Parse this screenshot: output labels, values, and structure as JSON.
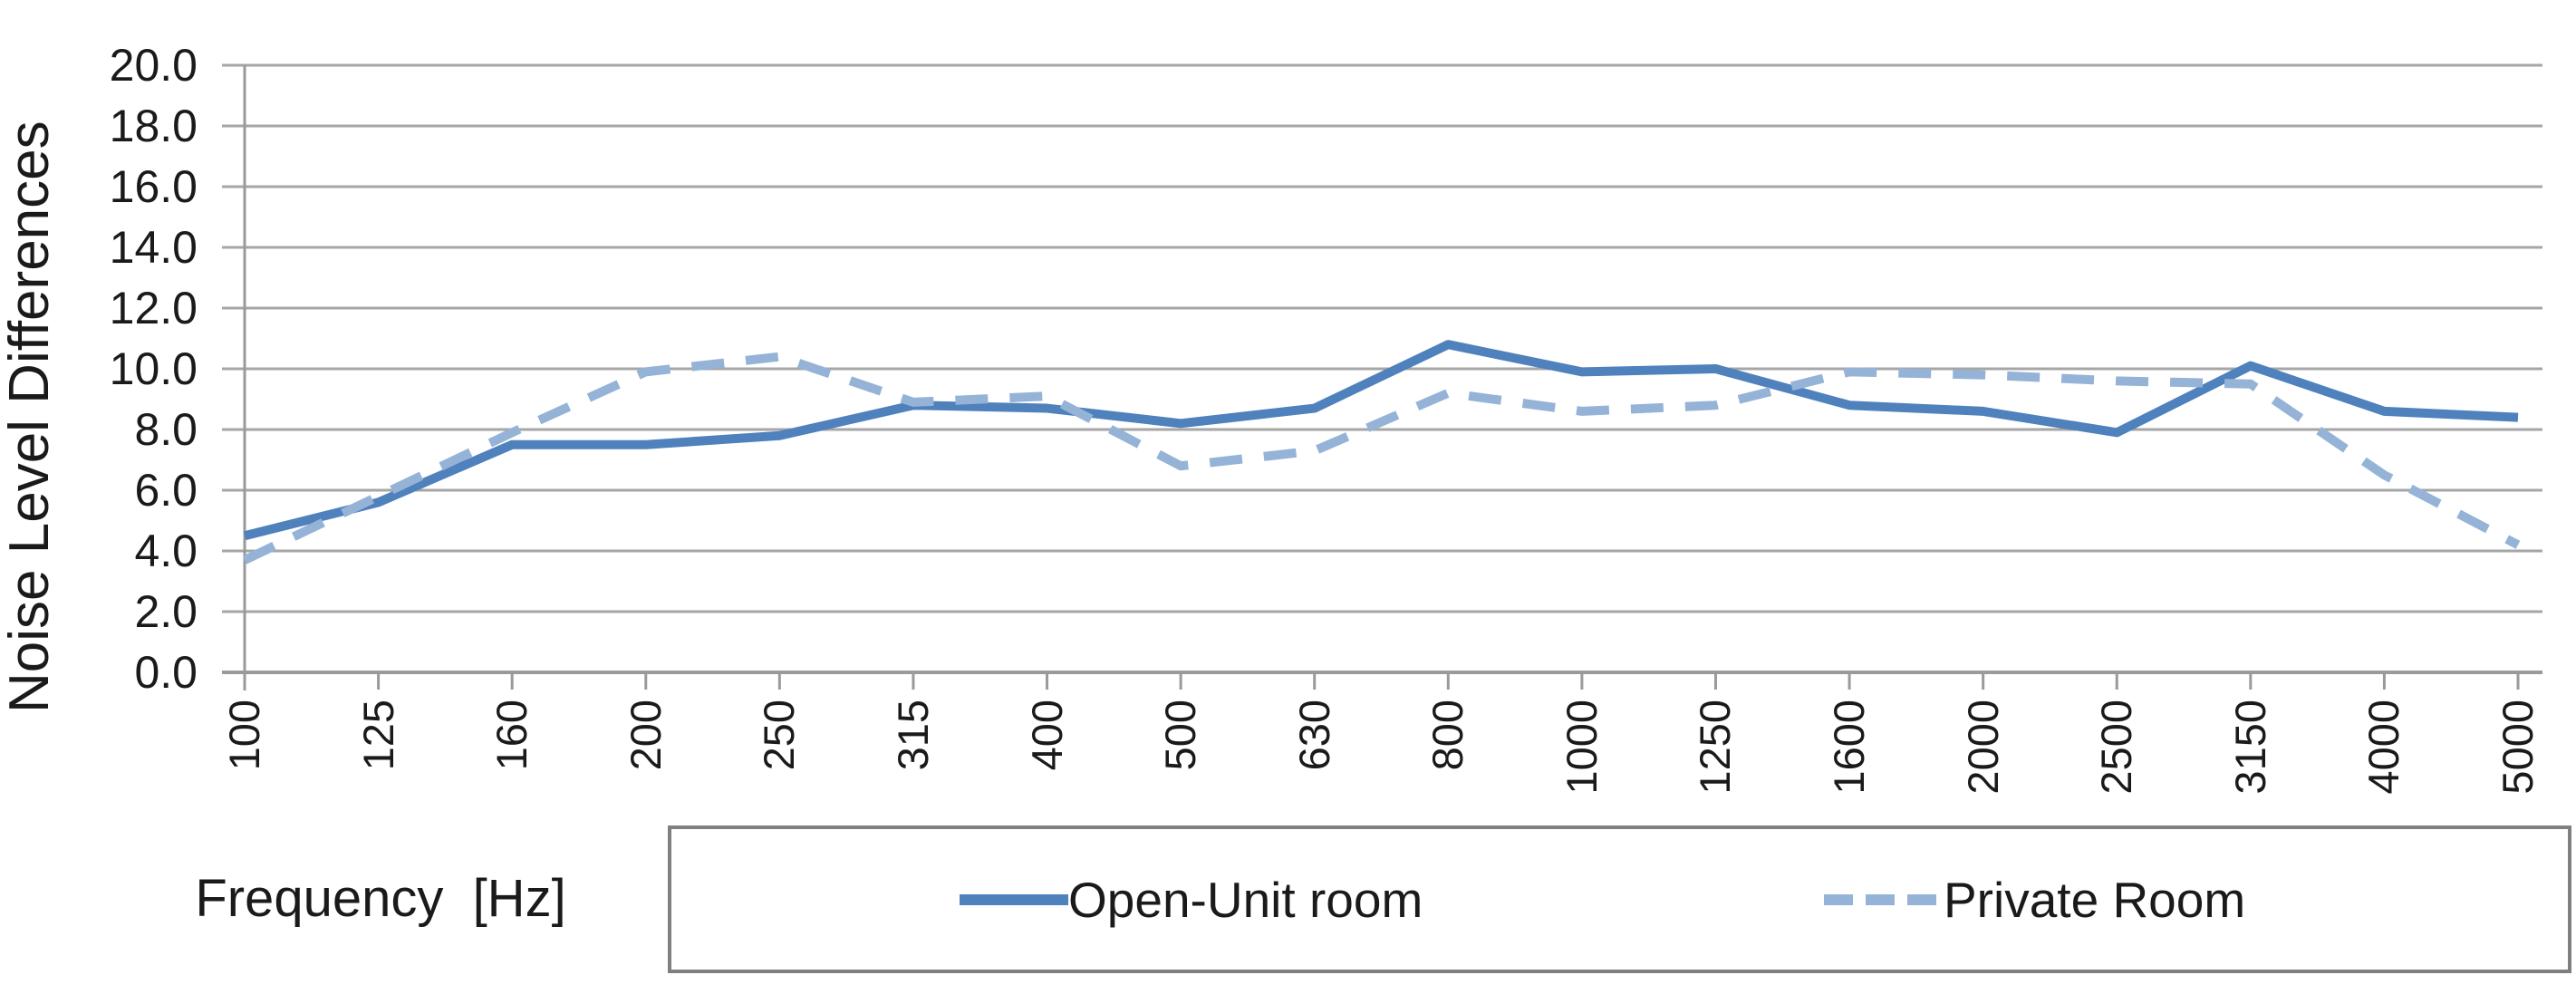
{
  "chart_data": {
    "type": "line",
    "title": "",
    "categories": [
      "100",
      "125",
      "160",
      "200",
      "250",
      "315",
      "400",
      "500",
      "630",
      "800",
      "1000",
      "1250",
      "1600",
      "2000",
      "2500",
      "3150",
      "4000",
      "5000"
    ],
    "series": [
      {
        "name": "Open-Unit room",
        "style": "solid",
        "color": "#4F81BD",
        "values": [
          4.5,
          5.6,
          7.5,
          7.5,
          7.8,
          8.8,
          8.7,
          8.2,
          8.7,
          10.8,
          9.9,
          10.0,
          8.8,
          8.6,
          7.9,
          10.1,
          8.6,
          8.4
        ]
      },
      {
        "name": "Private Room",
        "style": "dashed",
        "color": "#95B3D7",
        "values": [
          3.7,
          5.8,
          7.9,
          9.9,
          10.4,
          8.9,
          9.1,
          6.8,
          7.3,
          9.2,
          8.6,
          8.8,
          9.9,
          9.8,
          9.6,
          9.5,
          6.5,
          4.2
        ]
      }
    ],
    "xlabel": "Frequency  [Hz]",
    "ylabel": "Noise Level Differences",
    "ylim": [
      0,
      20
    ],
    "ytick_step": 2,
    "grid": "horizontal",
    "legend_position": "bottom"
  },
  "axes": {
    "y_tick_labels": [
      "20.0",
      "18.0",
      "16.0",
      "14.0",
      "12.0",
      "10.0",
      "8.0",
      "6.0",
      "4.0",
      "2.0",
      "0.0"
    ],
    "x_tick_labels": [
      "100",
      "125",
      "160",
      "200",
      "250",
      "315",
      "400",
      "500",
      "630",
      "800",
      "1000",
      "1250",
      "1600",
      "2000",
      "2500",
      "3150",
      "4000",
      "5000"
    ]
  },
  "legend": {
    "items": [
      {
        "label": "Open-Unit room",
        "swatch": "solid-line"
      },
      {
        "label": "Private Room",
        "swatch": "dashed-line"
      }
    ]
  },
  "colors": {
    "grid": "#a6a6a6",
    "axis": "#9a9a9a",
    "text": "#1a1a1a",
    "legend_border": "#7f7f7f",
    "series_solid": "#4F81BD",
    "series_dashed": "#95B3D7"
  }
}
